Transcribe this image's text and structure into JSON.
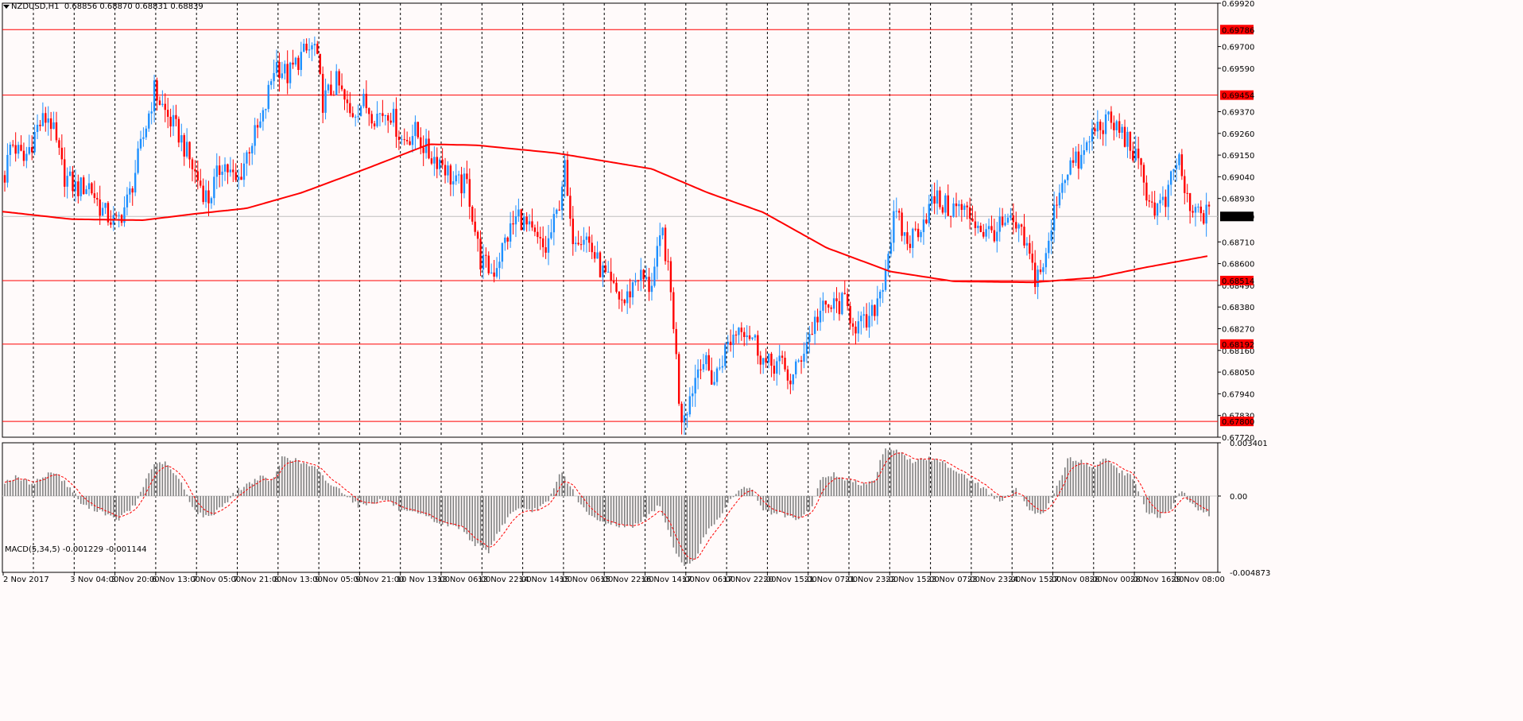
{
  "header": {
    "symbol": "NZDUSD,H1",
    "ohlc": "0.68856 0.68870 0.68831 0.68839"
  },
  "macd_panel": {
    "label": "MACD(5,34,5) -0.001229 -0.001144"
  },
  "colors": {
    "background": "#fffafa",
    "bull_candle": "#1e90ff",
    "bear_candle": "#ff0000",
    "level_line": "#ff0000",
    "ma_line": "#ff0000",
    "grid": "#000000",
    "macd_hist": "#808080",
    "macd_signal": "#ff0000"
  },
  "chart_data": [
    {
      "type": "candlestick",
      "title": "NZDUSD,H1",
      "timeframe": "H1",
      "last_price": 0.68839,
      "ylim": [
        0.6772,
        0.6992
      ],
      "y_ticks": [
        "0.69920",
        "0.69700",
        "0.69590",
        "0.69370",
        "0.69260",
        "0.69150",
        "0.69040",
        "0.68930",
        "0.68710",
        "0.68600",
        "0.68490",
        "0.68380",
        "0.68270",
        "0.68160",
        "0.68050",
        "0.67940",
        "0.67830",
        "0.67720"
      ],
      "x_ticks": [
        "2 Nov 2017",
        "3 Nov 04:00",
        "3 Nov 20:00",
        "6 Nov 13:00",
        "7 Nov 05:00",
        "7 Nov 21:00",
        "8 Nov 13:00",
        "9 Nov 05:00",
        "9 Nov 21:00",
        "10 Nov 13:00",
        "13 Nov 06:00",
        "13 Nov 22:00",
        "14 Nov 14:00",
        "15 Nov 06:00",
        "15 Nov 22:00",
        "16 Nov 14:00",
        "17 Nov 06:00",
        "17 Nov 22:00",
        "20 Nov 15:00",
        "21 Nov 07:00",
        "21 Nov 23:00",
        "22 Nov 15:00",
        "23 Nov 07:00",
        "23 Nov 23:00",
        "24 Nov 15:00",
        "27 Nov 08:00",
        "28 Nov 00:00",
        "28 Nov 16:00",
        "29 Nov 08:00"
      ],
      "horizontal_levels": [
        "0.69786",
        "0.69454",
        "0.68514",
        "0.68192",
        "0.67800"
      ],
      "price_path": [
        [
          0,
          0.6892
        ],
        [
          14,
          0.6922
        ],
        [
          30,
          0.6912
        ],
        [
          48,
          0.693
        ],
        [
          62,
          0.6935
        ],
        [
          80,
          0.6905
        ],
        [
          96,
          0.6898
        ],
        [
          112,
          0.69
        ],
        [
          128,
          0.6887
        ],
        [
          146,
          0.688
        ],
        [
          162,
          0.6893
        ],
        [
          178,
          0.692
        ],
        [
          194,
          0.6948
        ],
        [
          210,
          0.6935
        ],
        [
          226,
          0.6925
        ],
        [
          246,
          0.6905
        ],
        [
          262,
          0.6892
        ],
        [
          280,
          0.6912
        ],
        [
          298,
          0.69
        ],
        [
          314,
          0.692
        ],
        [
          330,
          0.6932
        ],
        [
          346,
          0.6962
        ],
        [
          362,
          0.6955
        ],
        [
          378,
          0.6965
        ],
        [
          396,
          0.697
        ],
        [
          406,
          0.6942
        ],
        [
          424,
          0.6952
        ],
        [
          440,
          0.6935
        ],
        [
          456,
          0.6942
        ],
        [
          472,
          0.6935
        ],
        [
          490,
          0.6938
        ],
        [
          506,
          0.6922
        ],
        [
          522,
          0.6927
        ],
        [
          540,
          0.6915
        ],
        [
          556,
          0.6912
        ],
        [
          572,
          0.69
        ],
        [
          588,
          0.69
        ],
        [
          604,
          0.6862
        ],
        [
          620,
          0.6855
        ],
        [
          636,
          0.6872
        ],
        [
          652,
          0.6885
        ],
        [
          668,
          0.6875
        ],
        [
          686,
          0.6866
        ],
        [
          702,
          0.6887
        ],
        [
          710,
          0.691
        ],
        [
          718,
          0.6875
        ],
        [
          736,
          0.6875
        ],
        [
          752,
          0.686
        ],
        [
          768,
          0.6848
        ],
        [
          786,
          0.684
        ],
        [
          802,
          0.6855
        ],
        [
          818,
          0.6848
        ],
        [
          834,
          0.6876
        ],
        [
          846,
          0.6838
        ],
        [
          856,
          0.6782
        ],
        [
          866,
          0.679
        ],
        [
          882,
          0.6813
        ],
        [
          898,
          0.68
        ],
        [
          914,
          0.6818
        ],
        [
          932,
          0.683
        ],
        [
          948,
          0.6822
        ],
        [
          964,
          0.6808
        ],
        [
          980,
          0.681
        ],
        [
          996,
          0.68
        ],
        [
          1012,
          0.6818
        ],
        [
          1030,
          0.6835
        ],
        [
          1046,
          0.6838
        ],
        [
          1062,
          0.684
        ],
        [
          1078,
          0.6828
        ],
        [
          1094,
          0.683
        ],
        [
          1110,
          0.685
        ],
        [
          1126,
          0.6885
        ],
        [
          1142,
          0.687
        ],
        [
          1158,
          0.688
        ],
        [
          1176,
          0.6893
        ],
        [
          1192,
          0.6888
        ],
        [
          1208,
          0.6888
        ],
        [
          1224,
          0.6883
        ],
        [
          1240,
          0.6875
        ],
        [
          1258,
          0.6878
        ],
        [
          1274,
          0.688
        ],
        [
          1290,
          0.687
        ],
        [
          1302,
          0.6853
        ],
        [
          1316,
          0.6862
        ],
        [
          1330,
          0.6895
        ],
        [
          1344,
          0.691
        ],
        [
          1360,
          0.6912
        ],
        [
          1376,
          0.6928
        ],
        [
          1392,
          0.6932
        ],
        [
          1408,
          0.6928
        ],
        [
          1422,
          0.692
        ],
        [
          1436,
          0.6905
        ],
        [
          1450,
          0.6888
        ],
        [
          1466,
          0.689
        ],
        [
          1482,
          0.6915
        ],
        [
          1496,
          0.6885
        ],
        [
          1510,
          0.6886
        ],
        [
          1522,
          0.6884
        ]
      ],
      "moving_average_path": [
        [
          0,
          0.68865
        ],
        [
          90,
          0.68825
        ],
        [
          180,
          0.6882
        ],
        [
          240,
          0.6885
        ],
        [
          310,
          0.6888
        ],
        [
          380,
          0.6896
        ],
        [
          460,
          0.6908
        ],
        [
          540,
          0.69205
        ],
        [
          600,
          0.692
        ],
        [
          700,
          0.6916
        ],
        [
          820,
          0.6908
        ],
        [
          890,
          0.6896
        ],
        [
          960,
          0.6886
        ],
        [
          1040,
          0.6868
        ],
        [
          1120,
          0.6856
        ],
        [
          1200,
          0.6851
        ],
        [
          1300,
          0.68505
        ],
        [
          1380,
          0.6853
        ],
        [
          1440,
          0.6858
        ],
        [
          1522,
          0.6864
        ]
      ]
    },
    {
      "type": "bar",
      "title": "MACD(5,34,5)",
      "ylim": [
        -0.004873,
        0.003401
      ],
      "y_ticks": [
        "0.003401",
        "0.00",
        "-0.004873"
      ],
      "current_values": [
        -0.001229,
        -0.001144
      ],
      "hist_path": [
        [
          0,
          0.0008
        ],
        [
          20,
          0.0012
        ],
        [
          40,
          0.0008
        ],
        [
          68,
          0.0016
        ],
        [
          90,
          0.0004
        ],
        [
          104,
          -0.0006
        ],
        [
          130,
          -0.001
        ],
        [
          146,
          -0.0016
        ],
        [
          170,
          -0.0006
        ],
        [
          190,
          0.0018
        ],
        [
          206,
          0.0022
        ],
        [
          226,
          0.001
        ],
        [
          246,
          -0.001
        ],
        [
          262,
          -0.0014
        ],
        [
          280,
          -0.0006
        ],
        [
          300,
          0.0004
        ],
        [
          326,
          0.0012
        ],
        [
          344,
          0.001
        ],
        [
          356,
          0.0026
        ],
        [
          376,
          0.0022
        ],
        [
          396,
          0.0018
        ],
        [
          414,
          0.0008
        ],
        [
          434,
          0.0002
        ],
        [
          450,
          -0.0006
        ],
        [
          486,
          -0.0002
        ],
        [
          506,
          -0.001
        ],
        [
          530,
          -0.0012
        ],
        [
          556,
          -0.0018
        ],
        [
          580,
          -0.002
        ],
        [
          596,
          -0.003
        ],
        [
          614,
          -0.0036
        ],
        [
          630,
          -0.002
        ],
        [
          648,
          -0.0008
        ],
        [
          668,
          -0.001
        ],
        [
          690,
          -0.0004
        ],
        [
          706,
          0.0016
        ],
        [
          720,
          0.0004
        ],
        [
          736,
          -0.001
        ],
        [
          752,
          -0.0016
        ],
        [
          772,
          -0.0018
        ],
        [
          792,
          -0.002
        ],
        [
          812,
          -0.0014
        ],
        [
          830,
          -0.0006
        ],
        [
          846,
          -0.003
        ],
        [
          860,
          -0.0046
        ],
        [
          874,
          -0.004
        ],
        [
          890,
          -0.0022
        ],
        [
          910,
          -0.001
        ],
        [
          932,
          0.0006
        ],
        [
          946,
          0.0004
        ],
        [
          962,
          -0.001
        ],
        [
          984,
          -0.0012
        ],
        [
          1004,
          -0.0016
        ],
        [
          1020,
          -0.0008
        ],
        [
          1034,
          0.0012
        ],
        [
          1050,
          0.0014
        ],
        [
          1066,
          0.001
        ],
        [
          1082,
          0.0008
        ],
        [
          1100,
          0.001
        ],
        [
          1112,
          0.003
        ],
        [
          1128,
          0.003
        ],
        [
          1146,
          0.0022
        ],
        [
          1166,
          0.0024
        ],
        [
          1184,
          0.0022
        ],
        [
          1204,
          0.0016
        ],
        [
          1224,
          0.001
        ],
        [
          1244,
          0.0002
        ],
        [
          1260,
          -0.0004
        ],
        [
          1278,
          0.0004
        ],
        [
          1294,
          -0.0008
        ],
        [
          1312,
          -0.0012
        ],
        [
          1328,
          0.0004
        ],
        [
          1344,
          0.0024
        ],
        [
          1360,
          0.0022
        ],
        [
          1376,
          0.0018
        ],
        [
          1392,
          0.0024
        ],
        [
          1408,
          0.0016
        ],
        [
          1426,
          0.0012
        ],
        [
          1442,
          -0.001
        ],
        [
          1458,
          -0.0014
        ],
        [
          1474,
          -0.0008
        ],
        [
          1486,
          0.0004
        ],
        [
          1500,
          -0.0006
        ],
        [
          1522,
          -0.0012
        ]
      ]
    }
  ]
}
